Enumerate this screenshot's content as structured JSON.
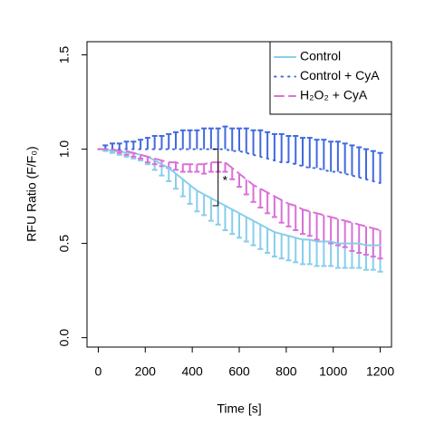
{
  "chart_data": {
    "type": "line",
    "xlabel": "Time [s]",
    "ylabel": "RFU Ratio (F/F₀)",
    "x": [
      0,
      30,
      60,
      90,
      120,
      150,
      180,
      210,
      240,
      270,
      300,
      330,
      360,
      390,
      420,
      450,
      480,
      510,
      540,
      570,
      600,
      630,
      660,
      690,
      720,
      750,
      780,
      810,
      840,
      870,
      900,
      930,
      960,
      990,
      1020,
      1050,
      1080,
      1110,
      1140,
      1170,
      1200
    ],
    "series": [
      {
        "name": "Control",
        "color": "#87ceeb",
        "line_style": "solid",
        "error_direction": "down",
        "values": [
          1.0,
          1.0,
          0.99,
          0.99,
          0.98,
          0.98,
          0.97,
          0.96,
          0.94,
          0.92,
          0.9,
          0.87,
          0.84,
          0.81,
          0.78,
          0.76,
          0.74,
          0.72,
          0.7,
          0.68,
          0.66,
          0.64,
          0.62,
          0.6,
          0.58,
          0.56,
          0.55,
          0.54,
          0.53,
          0.52,
          0.52,
          0.51,
          0.51,
          0.51,
          0.5,
          0.5,
          0.5,
          0.5,
          0.49,
          0.49,
          0.49
        ],
        "errors": [
          0,
          0.01,
          0.01,
          0.02,
          0.02,
          0.03,
          0.03,
          0.04,
          0.05,
          0.06,
          0.07,
          0.08,
          0.09,
          0.1,
          0.11,
          0.11,
          0.12,
          0.12,
          0.13,
          0.13,
          0.13,
          0.13,
          0.13,
          0.13,
          0.13,
          0.13,
          0.13,
          0.13,
          0.13,
          0.13,
          0.13,
          0.13,
          0.13,
          0.13,
          0.13,
          0.13,
          0.13,
          0.13,
          0.13,
          0.13,
          0.14
        ]
      },
      {
        "name": "Control + CyA",
        "color": "#4169e1",
        "line_style": "dotted",
        "error_direction": "up",
        "values": [
          1.0,
          1.0,
          1.0,
          1.0,
          1.0,
          1.0,
          1.0,
          1.0,
          1.0,
          1.0,
          1.0,
          1.0,
          1.0,
          1.0,
          1.0,
          1.0,
          1.0,
          1.0,
          1.0,
          0.99,
          0.99,
          0.98,
          0.97,
          0.96,
          0.95,
          0.94,
          0.93,
          0.93,
          0.92,
          0.91,
          0.9,
          0.9,
          0.89,
          0.88,
          0.88,
          0.87,
          0.86,
          0.85,
          0.84,
          0.83,
          0.82
        ],
        "errors": [
          0,
          0.02,
          0.03,
          0.03,
          0.04,
          0.04,
          0.05,
          0.06,
          0.07,
          0.07,
          0.08,
          0.09,
          0.1,
          0.1,
          0.1,
          0.11,
          0.11,
          0.11,
          0.12,
          0.12,
          0.12,
          0.13,
          0.13,
          0.14,
          0.14,
          0.14,
          0.15,
          0.14,
          0.15,
          0.15,
          0.16,
          0.15,
          0.16,
          0.16,
          0.16,
          0.16,
          0.16,
          0.16,
          0.16,
          0.16,
          0.16
        ]
      },
      {
        "name": "H₂O₂ + CyA",
        "color": "#da70d6",
        "line_style": "dashed",
        "error_direction": "down",
        "values": [
          1.0,
          1.0,
          1.0,
          0.99,
          0.99,
          0.98,
          0.97,
          0.96,
          0.95,
          0.94,
          0.93,
          0.93,
          0.92,
          0.92,
          0.92,
          0.92,
          0.93,
          0.93,
          0.93,
          0.9,
          0.87,
          0.84,
          0.81,
          0.79,
          0.77,
          0.75,
          0.73,
          0.71,
          0.7,
          0.68,
          0.67,
          0.66,
          0.65,
          0.64,
          0.63,
          0.62,
          0.61,
          0.6,
          0.59,
          0.58,
          0.57
        ],
        "errors": [
          0,
          0,
          0.01,
          0.01,
          0.02,
          0.02,
          0.02,
          0.03,
          0.03,
          0.03,
          0.03,
          0.04,
          0.04,
          0.04,
          0.04,
          0.05,
          0.05,
          0.05,
          0.05,
          0.06,
          0.07,
          0.08,
          0.09,
          0.1,
          0.11,
          0.11,
          0.12,
          0.12,
          0.13,
          0.13,
          0.13,
          0.14,
          0.14,
          0.14,
          0.14,
          0.14,
          0.15,
          0.15,
          0.15,
          0.15,
          0.15
        ]
      }
    ],
    "bracket": {
      "x": 510,
      "top": 1.0,
      "bottom": 0.7,
      "label": "*"
    },
    "xlim": [
      -48,
      1248
    ],
    "ylim": [
      -0.05,
      1.57
    ],
    "xticks": [
      0,
      200,
      400,
      600,
      800,
      1000,
      1200
    ],
    "yticks": [
      {
        "value": 0,
        "label": "0.0"
      },
      0.5,
      {
        "value": 1,
        "label": "1.0"
      },
      1.5
    ],
    "legend": "top-right"
  }
}
